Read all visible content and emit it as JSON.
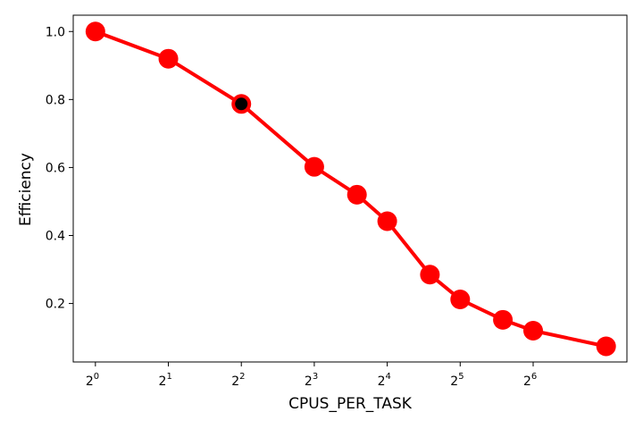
{
  "chart_data": {
    "type": "line",
    "title": "",
    "xlabel": "CPUS_PER_TASK",
    "ylabel": "Efficiency",
    "x_scale": "log2",
    "x_ticks": [
      {
        "value": 1,
        "base": "2",
        "exp": "0"
      },
      {
        "value": 2,
        "base": "2",
        "exp": "1"
      },
      {
        "value": 4,
        "base": "2",
        "exp": "2"
      },
      {
        "value": 8,
        "base": "2",
        "exp": "3"
      },
      {
        "value": 16,
        "base": "2",
        "exp": "4"
      },
      {
        "value": 32,
        "base": "2",
        "exp": "5"
      },
      {
        "value": 64,
        "base": "2",
        "exp": "6"
      }
    ],
    "y_ticks": [
      {
        "value": 0.2,
        "label": "0.2"
      },
      {
        "value": 0.4,
        "label": "0.4"
      },
      {
        "value": 0.6,
        "label": "0.6"
      },
      {
        "value": 0.8,
        "label": "0.8"
      },
      {
        "value": 1.0,
        "label": "1.0"
      }
    ],
    "xlim": [
      0.81,
      156
    ],
    "ylim": [
      0.028,
      1.048
    ],
    "grid": false,
    "series": [
      {
        "color": "#ff0000",
        "points": [
          {
            "x": 1,
            "y": 1.0
          },
          {
            "x": 2,
            "y": 0.92
          },
          {
            "x": 4,
            "y": 0.787
          },
          {
            "x": 8,
            "y": 0.602
          },
          {
            "x": 12,
            "y": 0.52
          },
          {
            "x": 16,
            "y": 0.442
          },
          {
            "x": 24,
            "y": 0.285
          },
          {
            "x": 32,
            "y": 0.212
          },
          {
            "x": 48,
            "y": 0.152
          },
          {
            "x": 64,
            "y": 0.12
          },
          {
            "x": 128,
            "y": 0.074
          }
        ],
        "highlight_index": 2,
        "highlight_color": "#000000"
      }
    ]
  }
}
